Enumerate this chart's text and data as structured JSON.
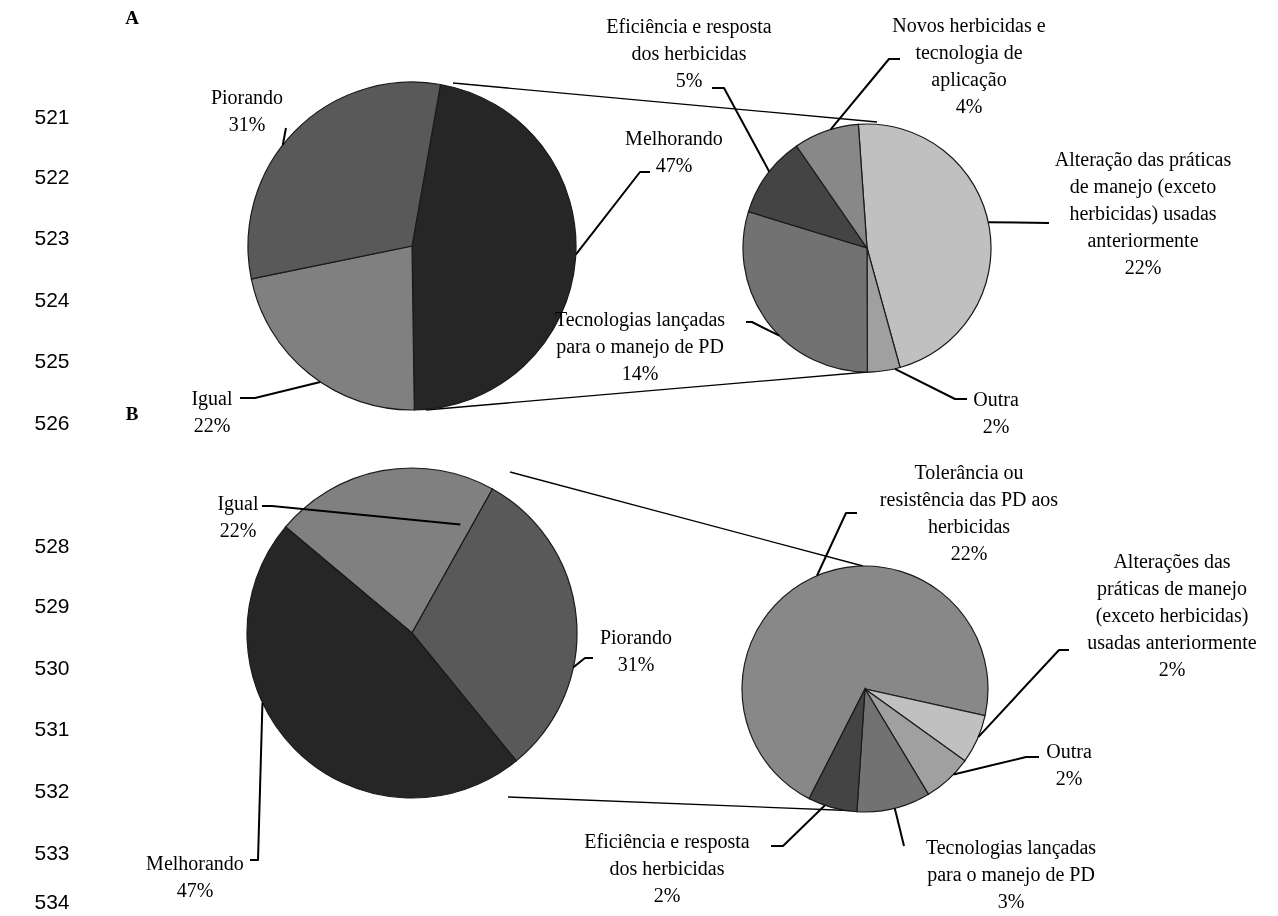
{
  "chart_data": [
    {
      "type": "pie",
      "title": "A",
      "categories": [
        "Melhorando",
        "Igual",
        "Piorando"
      ],
      "values": [
        47,
        22,
        31
      ],
      "value_labels": [
        "47%",
        "22%",
        "31%"
      ],
      "colors": [
        "#262626",
        "#808080",
        "#595959"
      ],
      "annotations": [
        "521",
        "522",
        "523",
        "524",
        "525",
        "526"
      ]
    },
    {
      "type": "pie",
      "categories": [
        "Alteração das práticas de manejo (exceto herbicidas) usadas anteriormente",
        "Outra",
        "Tecnologias lançadas para o manejo de PD",
        "Eficiência e resposta dos herbicidas",
        "Novos herbicidas e tecnologia de aplicação"
      ],
      "values": [
        22,
        2,
        14,
        5,
        4
      ],
      "value_labels": [
        "22%",
        "2%",
        "14%",
        "5%",
        "4%"
      ],
      "colors": [
        "#c0c0c0",
        "#a0a0a0",
        "#727272",
        "#444444",
        "#888888"
      ]
    },
    {
      "type": "pie",
      "title": "B",
      "categories": [
        "Igual",
        "Piorando",
        "Melhorando"
      ],
      "values": [
        22,
        31,
        47
      ],
      "value_labels": [
        "22%",
        "31%",
        "47%"
      ],
      "colors": [
        "#808080",
        "#595959",
        "#262626"
      ],
      "annotations": [
        "528",
        "529",
        "530",
        "531",
        "532",
        "533",
        "534"
      ]
    },
    {
      "type": "pie",
      "categories": [
        "Tolerância ou resistência das PD aos herbicidas",
        "Alterações das práticas de manejo (exceto herbicidas) usadas anteriormente",
        "Outra",
        "Tecnologias lançadas para o manejo de PD",
        "Eficiência e resposta dos herbicidas"
      ],
      "values": [
        22,
        2,
        2,
        3,
        2
      ],
      "value_labels": [
        "22%",
        "2%",
        "2%",
        "3%",
        "2%"
      ],
      "colors": [
        "#888888",
        "#c0c0c0",
        "#a0a0a0",
        "#727272",
        "#444444"
      ]
    }
  ]
}
